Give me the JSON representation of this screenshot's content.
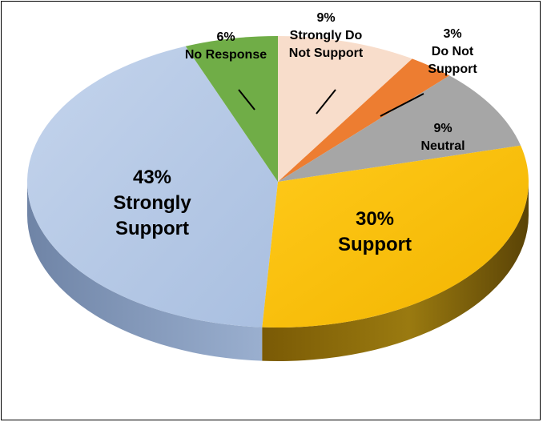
{
  "chart_data": {
    "type": "pie",
    "style": "3d",
    "title": "",
    "slices": [
      {
        "pct": "43%",
        "label": "Strongly Support",
        "value": 43,
        "color": "#b3c7e6",
        "side_color": "#7f93b3"
      },
      {
        "pct": "6%",
        "label": "No Response",
        "value": 6,
        "color": "#70ad47",
        "side_color": "#3f7024"
      },
      {
        "pct": "9%",
        "label": "Strongly Do Not Support",
        "value": 9,
        "color": "#f8ddcb",
        "side_color": "#c9ad9a"
      },
      {
        "pct": "3%",
        "label": "Do Not Support",
        "value": 3,
        "color": "#ed7d31",
        "side_color": "#a8561e"
      },
      {
        "pct": "9%",
        "label": "Neutral",
        "value": 9,
        "color": "#a6a6a6",
        "side_color": "#6f6f6f"
      },
      {
        "pct": "30%",
        "label": "Support",
        "value": 30,
        "color": "#ffc000",
        "side_color": "#8a6a0a"
      }
    ]
  }
}
